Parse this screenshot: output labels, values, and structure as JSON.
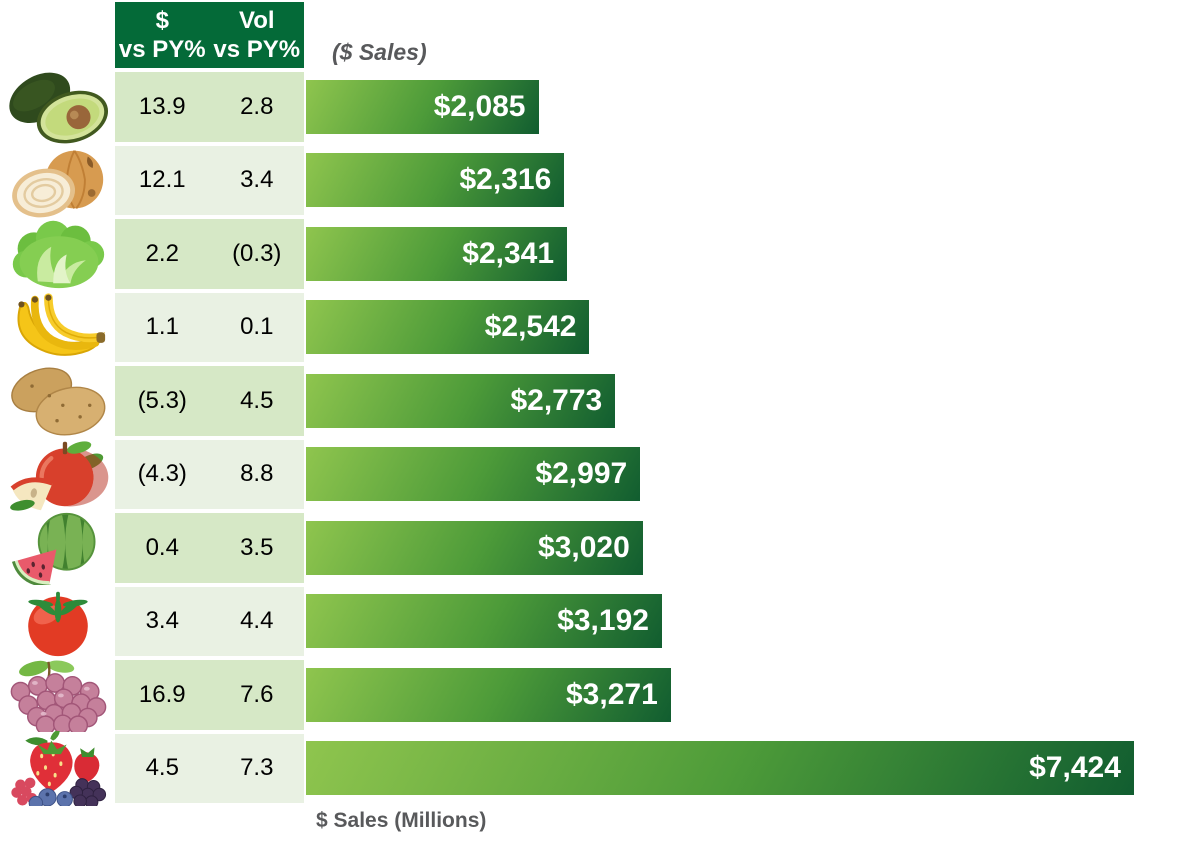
{
  "colors": {
    "header_green": "#046A38",
    "row_light": "#E9F1E3",
    "row_dark": "#D6E8C6",
    "bar_light": "#8FC54E",
    "bar_mid": "#4D9B39",
    "bar_dark": "#115D30",
    "label_gray": "#58595B",
    "bar_text": "#FFFFFF",
    "cell_text": "#000000"
  },
  "header": {
    "col1_line1": "$",
    "col1_line2": "vs PY%",
    "col2_line1": "Vol",
    "col2_line2": "vs PY%",
    "axis_title": "($ Sales)"
  },
  "footer": {
    "axis_label": "$ Sales (Millions)"
  },
  "chart_data": {
    "type": "bar",
    "orientation": "horizontal",
    "title": "($ Sales)",
    "xlabel": "$ Sales (Millions)",
    "value_unit": "millions USD",
    "max_value": 7424,
    "max_bar_fraction_pct": 92.4,
    "columns": [
      "$ vs PY%",
      "Vol vs PY%",
      "$ Sales"
    ],
    "rows": [
      {
        "icon": "avocado-icon",
        "dollar_vs_py": "13.9",
        "vol_vs_py": "2.8",
        "sales_millions": 2085,
        "sales_label": "$2,085"
      },
      {
        "icon": "onion-icon",
        "dollar_vs_py": "12.1",
        "vol_vs_py": "3.4",
        "sales_millions": 2316,
        "sales_label": "$2,316"
      },
      {
        "icon": "lettuce-icon",
        "dollar_vs_py": "2.2",
        "vol_vs_py": "(0.3)",
        "sales_millions": 2341,
        "sales_label": "$2,341"
      },
      {
        "icon": "banana-icon",
        "dollar_vs_py": "1.1",
        "vol_vs_py": "0.1",
        "sales_millions": 2542,
        "sales_label": "$2,542"
      },
      {
        "icon": "potato-icon",
        "dollar_vs_py": "(5.3)",
        "vol_vs_py": "4.5",
        "sales_millions": 2773,
        "sales_label": "$2,773"
      },
      {
        "icon": "apple-icon",
        "dollar_vs_py": "(4.3)",
        "vol_vs_py": "8.8",
        "sales_millions": 2997,
        "sales_label": "$2,997"
      },
      {
        "icon": "watermelon-icon",
        "dollar_vs_py": "0.4",
        "vol_vs_py": "3.5",
        "sales_millions": 3020,
        "sales_label": "$3,020"
      },
      {
        "icon": "tomato-icon",
        "dollar_vs_py": "3.4",
        "vol_vs_py": "4.4",
        "sales_millions": 3192,
        "sales_label": "$3,192"
      },
      {
        "icon": "grapes-icon",
        "dollar_vs_py": "16.9",
        "vol_vs_py": "7.6",
        "sales_millions": 3271,
        "sales_label": "$3,271"
      },
      {
        "icon": "berries-icon",
        "dollar_vs_py": "4.5",
        "vol_vs_py": "7.3",
        "sales_millions": 7424,
        "sales_label": "$7,424"
      }
    ]
  }
}
